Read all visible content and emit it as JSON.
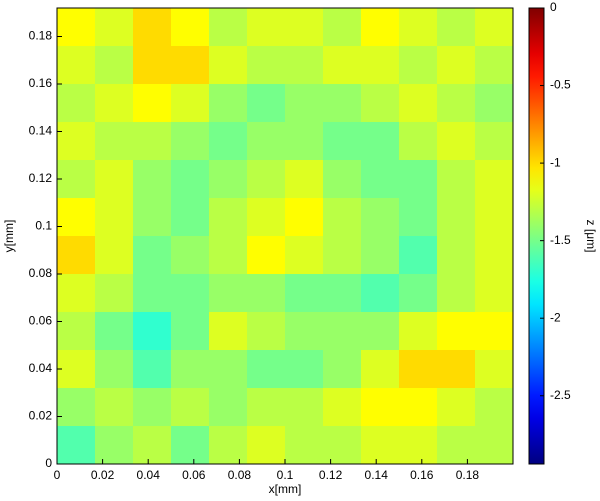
{
  "chart_data": {
    "type": "heatmap",
    "x_label": "x[mm]",
    "y_label": "y[mm]",
    "colorbar_label": "z [μm]",
    "xlim": [
      0,
      0.2
    ],
    "ylim": [
      0,
      0.192
    ],
    "xticks": [
      0,
      0.02,
      0.04,
      0.06,
      0.08,
      0.1,
      0.12,
      0.14,
      0.16,
      0.18
    ],
    "yticks": [
      0,
      0.02,
      0.04,
      0.06,
      0.08,
      0.1,
      0.12,
      0.14,
      0.16,
      0.18
    ],
    "colormap": "jet",
    "clim": [
      -2.94,
      0
    ],
    "cticks": [
      0,
      -0.5,
      -1,
      -1.5,
      -2,
      -2.5
    ],
    "z": [
      [
        -1.1,
        -1.2,
        -1.0,
        -1.1,
        -1.3,
        -1.2,
        -1.2,
        -1.3,
        -1.1,
        -1.2,
        -1.3,
        -1.2
      ],
      [
        -1.2,
        -1.3,
        -1.0,
        -1.0,
        -1.2,
        -1.3,
        -1.3,
        -1.2,
        -1.2,
        -1.3,
        -1.2,
        -1.3
      ],
      [
        -1.3,
        -1.2,
        -1.1,
        -1.2,
        -1.4,
        -1.5,
        -1.4,
        -1.4,
        -1.3,
        -1.2,
        -1.3,
        -1.4
      ],
      [
        -1.2,
        -1.3,
        -1.3,
        -1.4,
        -1.5,
        -1.4,
        -1.4,
        -1.5,
        -1.5,
        -1.3,
        -1.2,
        -1.3
      ],
      [
        -1.3,
        -1.2,
        -1.4,
        -1.5,
        -1.4,
        -1.3,
        -1.2,
        -1.4,
        -1.5,
        -1.5,
        -1.3,
        -1.2
      ],
      [
        -1.1,
        -1.2,
        -1.4,
        -1.5,
        -1.3,
        -1.2,
        -1.1,
        -1.3,
        -1.4,
        -1.5,
        -1.3,
        -1.2
      ],
      [
        -1.0,
        -1.2,
        -1.5,
        -1.4,
        -1.3,
        -1.1,
        -1.2,
        -1.3,
        -1.4,
        -1.6,
        -1.3,
        -1.2
      ],
      [
        -1.2,
        -1.3,
        -1.5,
        -1.5,
        -1.4,
        -1.4,
        -1.5,
        -1.5,
        -1.6,
        -1.5,
        -1.3,
        -1.2
      ],
      [
        -1.3,
        -1.5,
        -1.7,
        -1.5,
        -1.2,
        -1.3,
        -1.4,
        -1.4,
        -1.4,
        -1.2,
        -1.1,
        -1.1
      ],
      [
        -1.2,
        -1.4,
        -1.6,
        -1.4,
        -1.4,
        -1.5,
        -1.5,
        -1.4,
        -1.2,
        -1.0,
        -1.0,
        -1.2
      ],
      [
        -1.4,
        -1.3,
        -1.4,
        -1.3,
        -1.4,
        -1.3,
        -1.3,
        -1.2,
        -1.1,
        -1.1,
        -1.2,
        -1.3
      ],
      [
        -1.6,
        -1.4,
        -1.3,
        -1.5,
        -1.3,
        -1.2,
        -1.3,
        -1.3,
        -1.2,
        -1.2,
        -1.3,
        -1.3
      ]
    ]
  }
}
